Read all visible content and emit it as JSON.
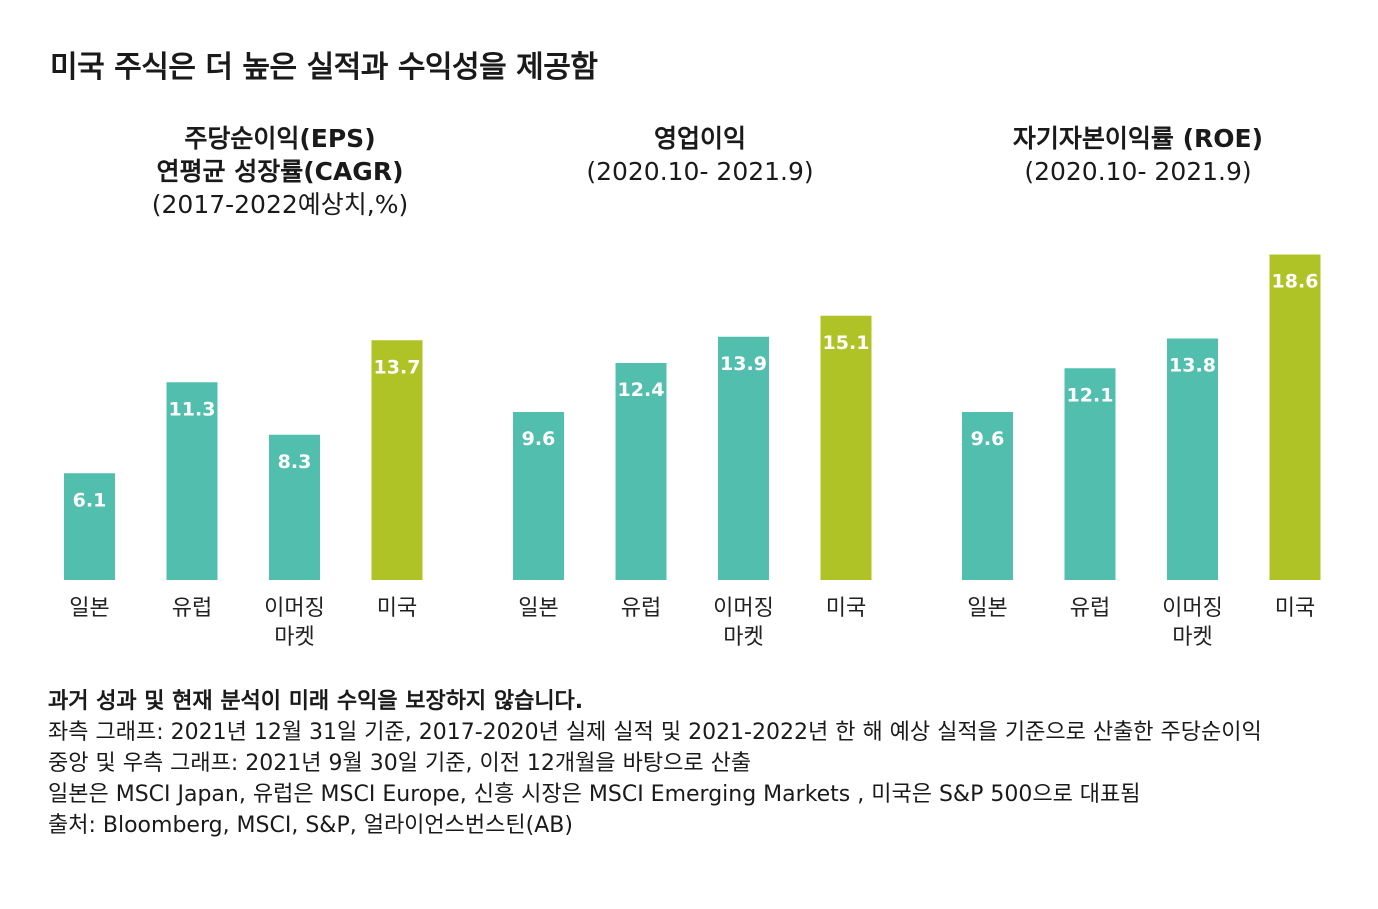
{
  "title": "미국 주식은 더 높은 실적과 수익성을 제공함",
  "colors": {
    "other": "#52bfae",
    "usa": "#b0c326"
  },
  "chart_data": [
    {
      "type": "bar",
      "title": "주당순이익(EPS)",
      "title_line2": "연평균 성장률(CAGR)",
      "subtitle": "(2017-2022예상치,%)",
      "categories": [
        "일본",
        "유럽",
        "이머징 마켓",
        "미국"
      ],
      "category_lines": [
        [
          "일본"
        ],
        [
          "유럽"
        ],
        [
          "이머징",
          "마켓"
        ],
        [
          "미국"
        ]
      ],
      "values": [
        6.1,
        11.3,
        8.3,
        13.7
      ],
      "highlight": "미국"
    },
    {
      "type": "bar",
      "title": "영업이익",
      "title_line2": "",
      "subtitle": "(2020.10- 2021.9)",
      "categories": [
        "일본",
        "유럽",
        "이머징 마켓",
        "미국"
      ],
      "category_lines": [
        [
          "일본"
        ],
        [
          "유럽"
        ],
        [
          "이머징",
          "마켓"
        ],
        [
          "미국"
        ]
      ],
      "values": [
        9.6,
        12.4,
        13.9,
        15.1
      ],
      "highlight": "미국"
    },
    {
      "type": "bar",
      "title": "자기자본이익률 (ROE)",
      "title_line2": "",
      "subtitle": "(2020.10- 2021.9)",
      "categories": [
        "일본",
        "유럽",
        "이머징 마켓",
        "미국"
      ],
      "category_lines": [
        [
          "일본"
        ],
        [
          "유럽"
        ],
        [
          "이머징",
          "마켓"
        ],
        [
          "미국"
        ]
      ],
      "values": [
        9.6,
        12.1,
        13.8,
        18.6
      ],
      "highlight": "미국"
    }
  ],
  "notes": {
    "disclaimer": "과거 성과 및 현재 분석이 미래 수익을 보장하지 않습니다.",
    "line1": "좌측 그래프: 2021년 12월 31일 기준, 2017-2020년 실제 실적 및 2021-2022년 한 해 예상 실적을 기준으로 산출한 주당순이익",
    "line2": "중앙 및 우측 그래프: 2021년 9월 30일 기준, 이전 12개월을 바탕으로 산출",
    "line3": "일본은 MSCI Japan, 유럽은 MSCI Europe, 신흥 시장은 MSCI Emerging Markets , 미국은 S&P 500으로 대표됨",
    "line4": "출처: Bloomberg, MSCI, S&P, 얼라이언스번스틴(AB)"
  }
}
